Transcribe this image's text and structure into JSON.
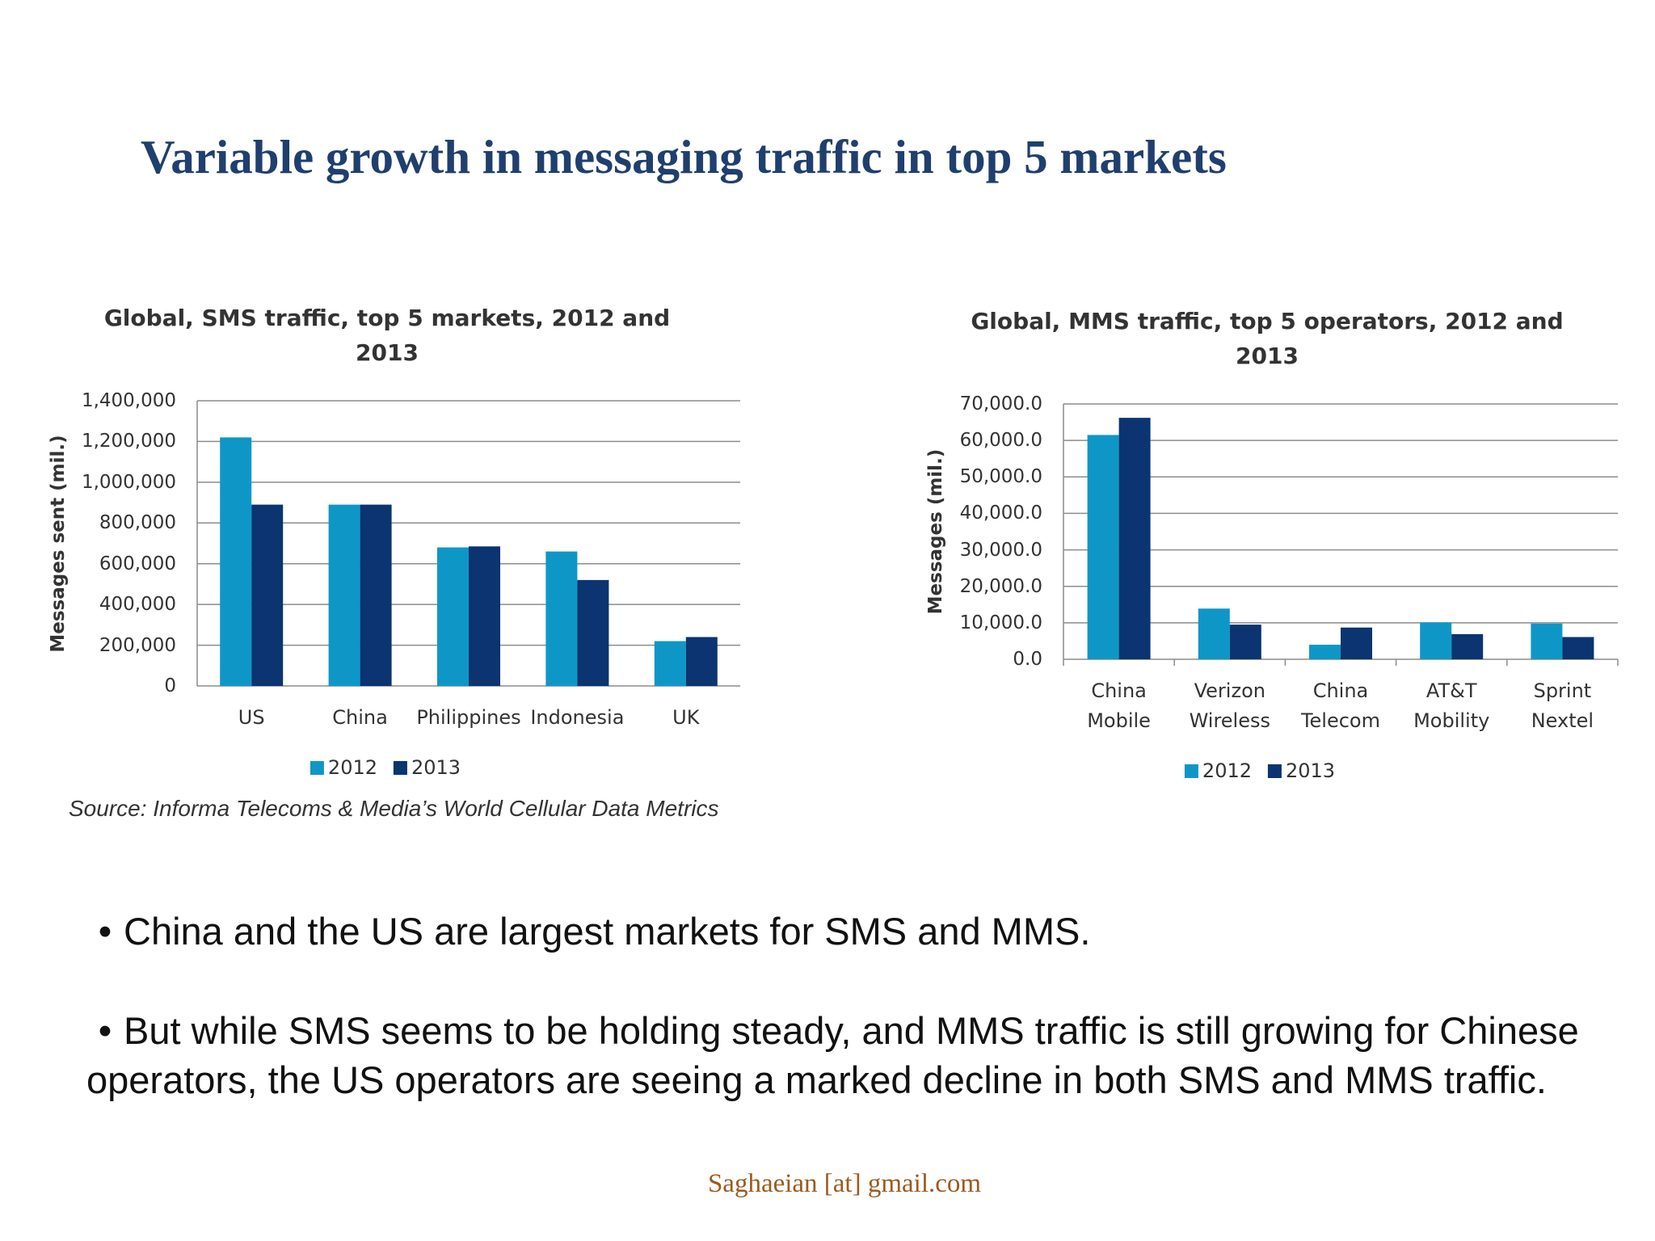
{
  "title": "Variable growth in messaging traffic in top 5 markets",
  "chart_data": [
    {
      "type": "bar",
      "title": "Global, SMS traffic, top 5 markets, 2012 and 2013",
      "y_label": "Messages sent (mil.)",
      "categories": [
        "US",
        "China",
        "Philippines",
        "Indonesia",
        "UK"
      ],
      "series": [
        {
          "name": "2012",
          "color": "#0e97c6",
          "values": [
            1220000,
            890000,
            680000,
            660000,
            220000
          ]
        },
        {
          "name": "2013",
          "color": "#0b3470",
          "values": [
            890000,
            890000,
            685000,
            520000,
            240000
          ]
        }
      ],
      "ylim": [
        0,
        1400000
      ],
      "yticks": [
        0,
        {
          "value": 200000,
          "label": "200,000"
        },
        {
          "value": 400000,
          "label": "400,000"
        },
        {
          "value": 600000,
          "label": "600,000"
        },
        {
          "value": 800000,
          "label": "800,000"
        },
        {
          "value": 1000000,
          "label": "1,000,000"
        },
        {
          "value": 1200000,
          "label": "1,200,000"
        },
        {
          "value": 1400000,
          "label": "1,400,000"
        }
      ],
      "grid": true,
      "legend": "bottom"
    },
    {
      "type": "bar",
      "title": "Global, MMS traffic, top 5 operators, 2012 and 2013",
      "y_label": "Messages (mil.)",
      "categories": [
        "China Mobile",
        "Verizon Wireless",
        "China Telecom",
        "AT&T Mobility",
        "Sprint Nextel"
      ],
      "series": [
        {
          "name": "2012",
          "color": "#0e97c6",
          "values": [
            61500,
            13900,
            4000,
            10100,
            9800
          ]
        },
        {
          "name": "2013",
          "color": "#0b3470",
          "values": [
            66200,
            9500,
            8700,
            6900,
            6100
          ]
        }
      ],
      "ylim": [
        0,
        70000
      ],
      "yticks": [
        {
          "value": 0,
          "label": "0.0"
        },
        {
          "value": 10000,
          "label": "10,000.0"
        },
        {
          "value": 20000,
          "label": "20,000.0"
        },
        {
          "value": 30000,
          "label": "30,000.0"
        },
        {
          "value": 40000,
          "label": "40,000.0"
        },
        {
          "value": 50000,
          "label": "50,000.0"
        },
        {
          "value": 60000,
          "label": "60,000.0"
        },
        {
          "value": 70000,
          "label": "70,000.0"
        }
      ],
      "grid": true,
      "legend": "bottom"
    }
  ],
  "source": "Source: Informa Telecoms & Media’s World Cellular Data Metrics",
  "bullets": [
    "China and the US are largest markets for SMS and MMS.",
    "But while SMS seems to be holding steady, and MMS traffic is still growing for Chinese operators, the US operators are seeing a marked decline in both SMS and MMS traffic."
  ],
  "footer": "Saghaeian [at] gmail.com"
}
